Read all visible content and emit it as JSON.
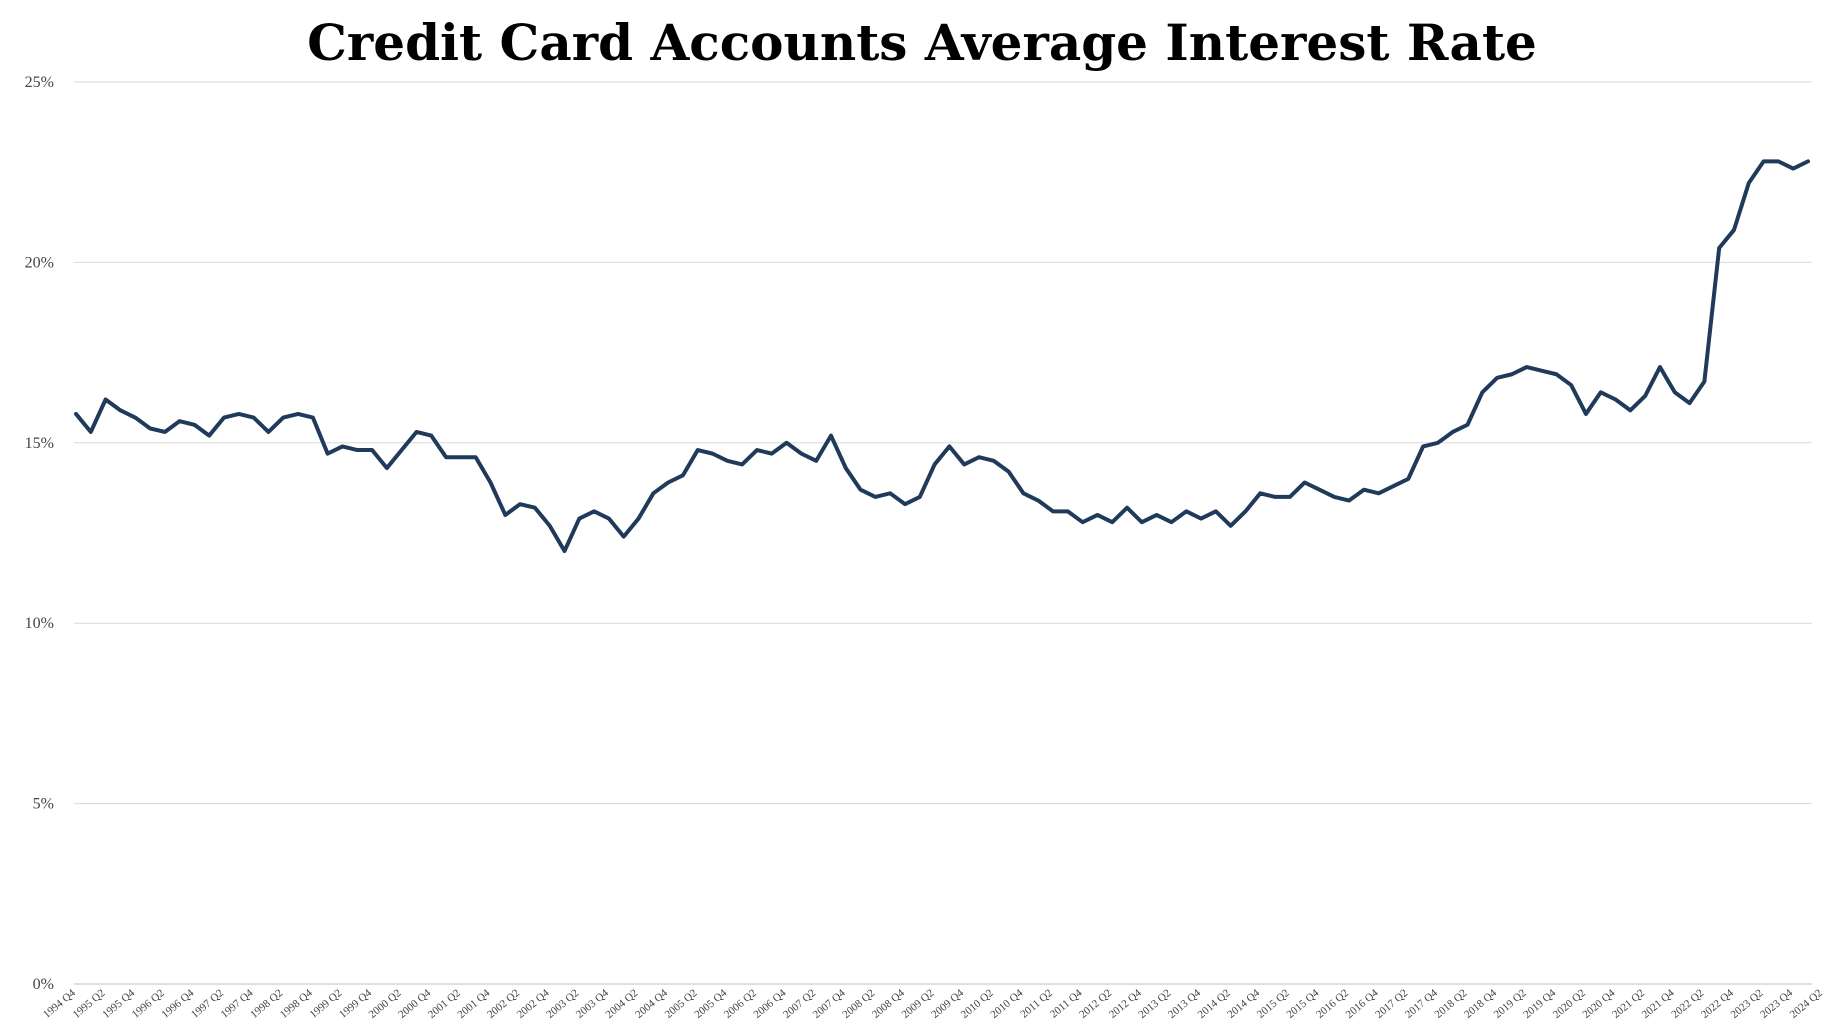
{
  "chart_data": {
    "type": "line",
    "title": "Credit Card Accounts Average Interest Rate",
    "xlabel": "",
    "ylabel": "",
    "ylim": [
      0,
      25
    ],
    "yticks": [
      0,
      5,
      10,
      15,
      20,
      25
    ],
    "ytick_labels": [
      "0%",
      "5%",
      "10%",
      "15%",
      "20%",
      "25%"
    ],
    "grid": true,
    "legend": "none",
    "colors": {
      "line": "#1f3a5a",
      "grid": "#d9d9d9"
    },
    "x_tick_labels": [
      "1994 Q4",
      "1995 Q2",
      "1995 Q4",
      "1996 Q2",
      "1996 Q4",
      "1997 Q2",
      "1997 Q4",
      "1998 Q2",
      "1998 Q4",
      "1999 Q2",
      "1999 Q4",
      "2000 Q2",
      "2000 Q4",
      "2001 Q2",
      "2001 Q4",
      "2002 Q2",
      "2002 Q4",
      "2003 Q2",
      "2003 Q4",
      "2004 Q2",
      "2004 Q4",
      "2005 Q2",
      "2005 Q4",
      "2006 Q2",
      "2006 Q4",
      "2007 Q2",
      "2007 Q4",
      "2008 Q2",
      "2008 Q4",
      "2009 Q2",
      "2009 Q4",
      "2010 Q2",
      "2010 Q4",
      "2011 Q2",
      "2011 Q4",
      "2012 Q2",
      "2012 Q4",
      "2013 Q2",
      "2013 Q4",
      "2014 Q2",
      "2014 Q4",
      "2015 Q2",
      "2015 Q4",
      "2016 Q2",
      "2016 Q4",
      "2017 Q2",
      "2017 Q4",
      "2018 Q2",
      "2018 Q4",
      "2019 Q2",
      "2019 Q4",
      "2020 Q2",
      "2020 Q4",
      "2021 Q2",
      "2021 Q4",
      "2022 Q2",
      "2022 Q4",
      "2023 Q2",
      "2023 Q4",
      "2024 Q2"
    ],
    "series": [
      {
        "values": [
          15.8,
          15.3,
          16.2,
          15.9,
          15.7,
          15.4,
          15.3,
          15.6,
          15.5,
          15.2,
          15.7,
          15.8,
          15.7,
          15.3,
          15.7,
          15.8,
          15.7,
          14.7,
          14.9,
          14.8,
          14.8,
          14.3,
          14.8,
          15.3,
          15.2,
          14.6,
          14.6,
          14.6,
          13.9,
          13.0,
          13.3,
          13.2,
          12.7,
          12.0,
          12.9,
          13.1,
          12.9,
          12.4,
          12.9,
          13.6,
          13.9,
          14.1,
          14.8,
          14.7,
          14.5,
          14.4,
          14.8,
          14.7,
          15.0,
          14.7,
          14.5,
          15.2,
          14.3,
          13.7,
          13.5,
          13.6,
          13.3,
          13.5,
          14.4,
          14.9,
          14.4,
          14.6,
          14.5,
          14.2,
          13.6,
          13.4,
          13.1,
          13.1,
          12.8,
          13.0,
          12.8,
          13.2,
          12.8,
          13.0,
          12.8,
          13.1,
          12.9,
          13.1,
          12.7,
          13.1,
          13.6,
          13.5,
          13.5,
          13.9,
          13.7,
          13.5,
          13.4,
          13.7,
          13.6,
          13.8,
          14.0,
          14.9,
          15.0,
          15.3,
          15.5,
          16.4,
          16.8,
          16.9,
          17.1,
          17.0,
          16.9,
          16.6,
          15.8,
          16.4,
          16.2,
          15.9,
          16.3,
          17.1,
          16.4,
          16.1,
          16.7,
          20.4,
          20.9,
          22.2,
          22.8,
          22.8,
          22.6,
          22.8
        ]
      }
    ]
  }
}
